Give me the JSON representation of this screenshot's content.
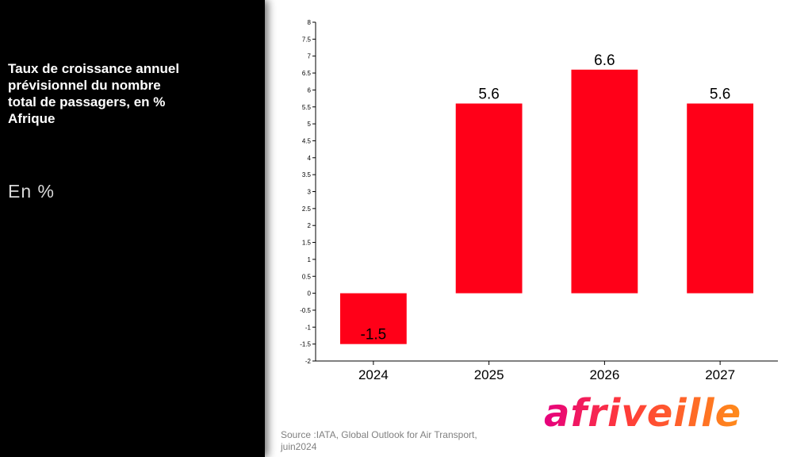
{
  "panel": {
    "title": "Taux de croissance annuel\nprévisionnel  du nombre\ntotal de passagers, en %\nAfrique",
    "unit": "En %"
  },
  "source": "Source :IATA, Global  Outlook for Air Transport, juin2024",
  "logo": {
    "text": "afriveille"
  },
  "colors": {
    "bar": "#ff0018",
    "axis": "#000000"
  },
  "chart_data": {
    "type": "bar",
    "categories": [
      "2024",
      "2025",
      "2026",
      "2027"
    ],
    "values": [
      -1.5,
      5.6,
      6.6,
      5.6
    ],
    "data_labels": [
      "-1.5",
      "5.6",
      "6.6",
      "5.6"
    ],
    "title": "",
    "xlabel": "",
    "ylabel": "",
    "ylim": [
      -2,
      8
    ],
    "yticks": [
      "-2",
      "-1.5",
      "-1",
      "-0.5",
      "0",
      "0.5",
      "1",
      "1.5",
      "2",
      "2.5",
      "3",
      "3.5",
      "4",
      "4.5",
      "5",
      "5.5",
      "6",
      "6.5",
      "7",
      "7.5",
      "8"
    ],
    "grid": false,
    "legend": "none"
  }
}
